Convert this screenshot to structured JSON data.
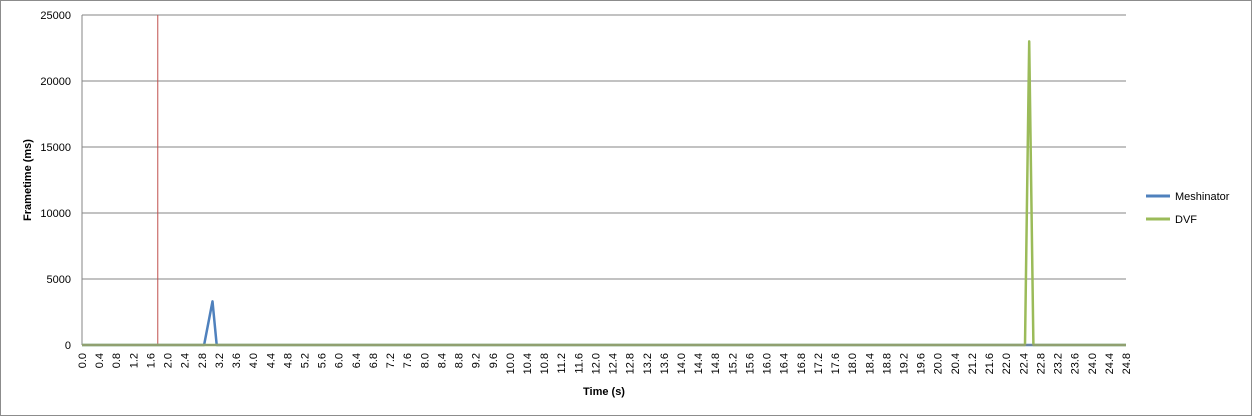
{
  "chart_data": {
    "type": "line",
    "title": "",
    "xlabel": "Time (s)",
    "ylabel": "Frametime (ms)",
    "ylim": [
      0,
      25000
    ],
    "yticks": [
      "0",
      "5000",
      "10000",
      "15000",
      "20000",
      "25000"
    ],
    "xlim": [
      0.0,
      24.8
    ],
    "xticks": [
      "0.0",
      "0.4",
      "0.8",
      "1.2",
      "1.6",
      "2.0",
      "2.4",
      "2.8",
      "3.2",
      "3.6",
      "4.0",
      "4.4",
      "4.8",
      "5.2",
      "5.6",
      "6.0",
      "6.4",
      "6.8",
      "7.2",
      "7.6",
      "8.0",
      "8.4",
      "8.8",
      "9.2",
      "9.6",
      "10.0",
      "10.4",
      "10.8",
      "11.2",
      "11.6",
      "12.0",
      "12.4",
      "12.8",
      "13.2",
      "13.6",
      "14.0",
      "14.4",
      "14.8",
      "15.2",
      "15.6",
      "16.0",
      "16.4",
      "16.8",
      "17.2",
      "17.6",
      "18.0",
      "18.4",
      "18.8",
      "19.2",
      "19.6",
      "20.0",
      "20.4",
      "21.2",
      "21.6",
      "22.0",
      "22.4",
      "22.8",
      "23.2",
      "23.6",
      "24.0",
      "24.4",
      "24.8"
    ],
    "grid": true,
    "legend_position": "right",
    "marker_line": {
      "x": 1.8,
      "color": "#c0504d"
    },
    "series": [
      {
        "name": "Meshinator",
        "color": "#4f81bd",
        "points": [
          [
            0.0,
            0
          ],
          [
            2.9,
            0
          ],
          [
            3.1,
            3300
          ],
          [
            3.2,
            0
          ],
          [
            24.8,
            0
          ]
        ]
      },
      {
        "name": "DVF",
        "color": "#9bbb59",
        "points": [
          [
            0.0,
            0
          ],
          [
            22.4,
            0
          ],
          [
            22.5,
            23000
          ],
          [
            22.6,
            0
          ],
          [
            24.8,
            0
          ]
        ]
      }
    ]
  }
}
